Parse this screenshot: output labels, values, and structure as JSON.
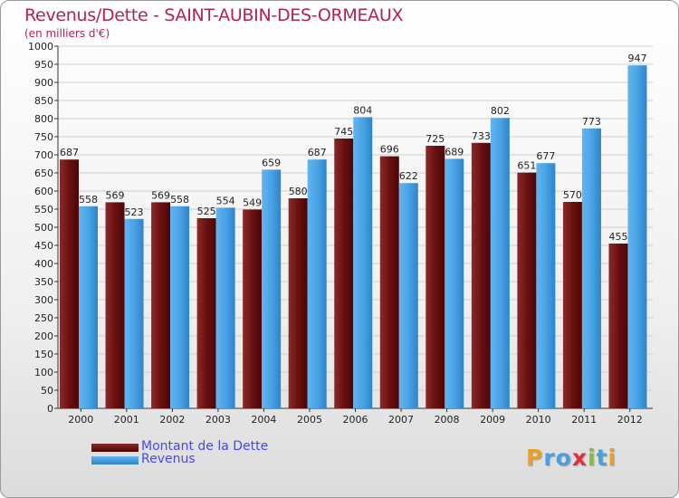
{
  "chart_data": {
    "type": "bar",
    "title": "Revenus/Dette - SAINT-AUBIN-DES-ORMEAUX",
    "subtitle": "(en milliers d'€)",
    "xlabel": "",
    "ylabel": "",
    "ylim": [
      0,
      1000
    ],
    "ytick_step": 50,
    "grid": true,
    "legend_position": "bottom-left",
    "categories": [
      "2000",
      "2001",
      "2002",
      "2003",
      "2004",
      "2005",
      "2006",
      "2007",
      "2008",
      "2009",
      "2010",
      "2011",
      "2012"
    ],
    "series": [
      {
        "name": "Montant de la Dette",
        "color": "#7a1c1c",
        "values": [
          687,
          569,
          569,
          525,
          549,
          580,
          745,
          696,
          725,
          733,
          651,
          570,
          455
        ]
      },
      {
        "name": "Revenus",
        "color": "#4aa3e6",
        "values": [
          558,
          523,
          558,
          554,
          659,
          687,
          804,
          622,
          689,
          802,
          677,
          773,
          947
        ]
      }
    ]
  },
  "logo": {
    "letters": [
      "P",
      "r",
      "o",
      "x",
      "i",
      "t",
      "i"
    ],
    "colors": [
      "#e8a020",
      "#4aa0e0",
      "#4aa0e0",
      "#e03040",
      "#80c040",
      "#4aa0e0",
      "#e8a020"
    ]
  }
}
